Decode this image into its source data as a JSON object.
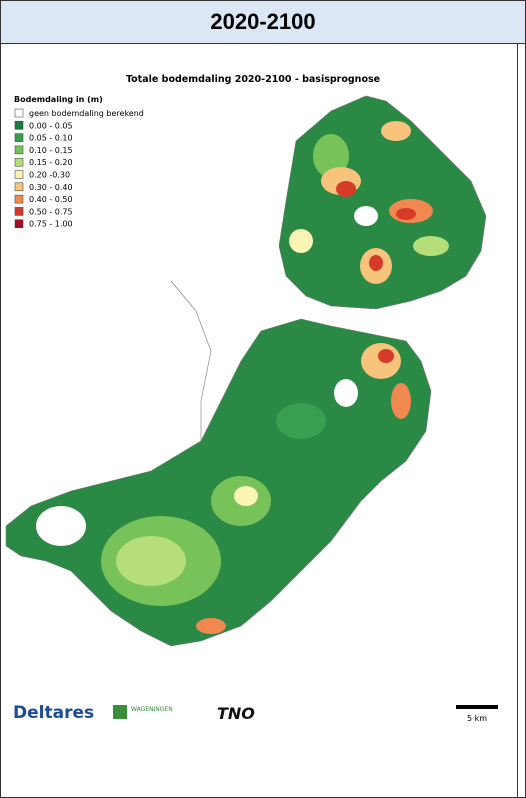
{
  "header": {
    "title": "2020-2100"
  },
  "map": {
    "title": "Totale bodemdaling 2020-2100 - basisprognose",
    "legend": {
      "title": "Bodemdaling in (m)",
      "items": [
        {
          "label": "geen bodemdaling berekend",
          "color": "#ffffff"
        },
        {
          "label": "0.00 - 0.05",
          "color": "#1a7a3c"
        },
        {
          "label": "0.05 - 0.10",
          "color": "#3a9e50"
        },
        {
          "label": "0.10 - 0.15",
          "color": "#78c25a"
        },
        {
          "label": "0.15 - 0.20",
          "color": "#b5dd79"
        },
        {
          "label": "0.20  -0.30",
          "color": "#fbf5b5"
        },
        {
          "label": "0.30 - 0.40",
          "color": "#f8c37a"
        },
        {
          "label": "0.40 - 0.50",
          "color": "#f0884f"
        },
        {
          "label": "0.50 - 0.75",
          "color": "#d63b2a"
        },
        {
          "label": "0.75 - 1.00",
          "color": "#a50f24"
        }
      ]
    },
    "scale": "5 km"
  },
  "logos": {
    "deltares": "Deltares",
    "wageningen": "WAGENINGEN",
    "tno": "TNO"
  }
}
